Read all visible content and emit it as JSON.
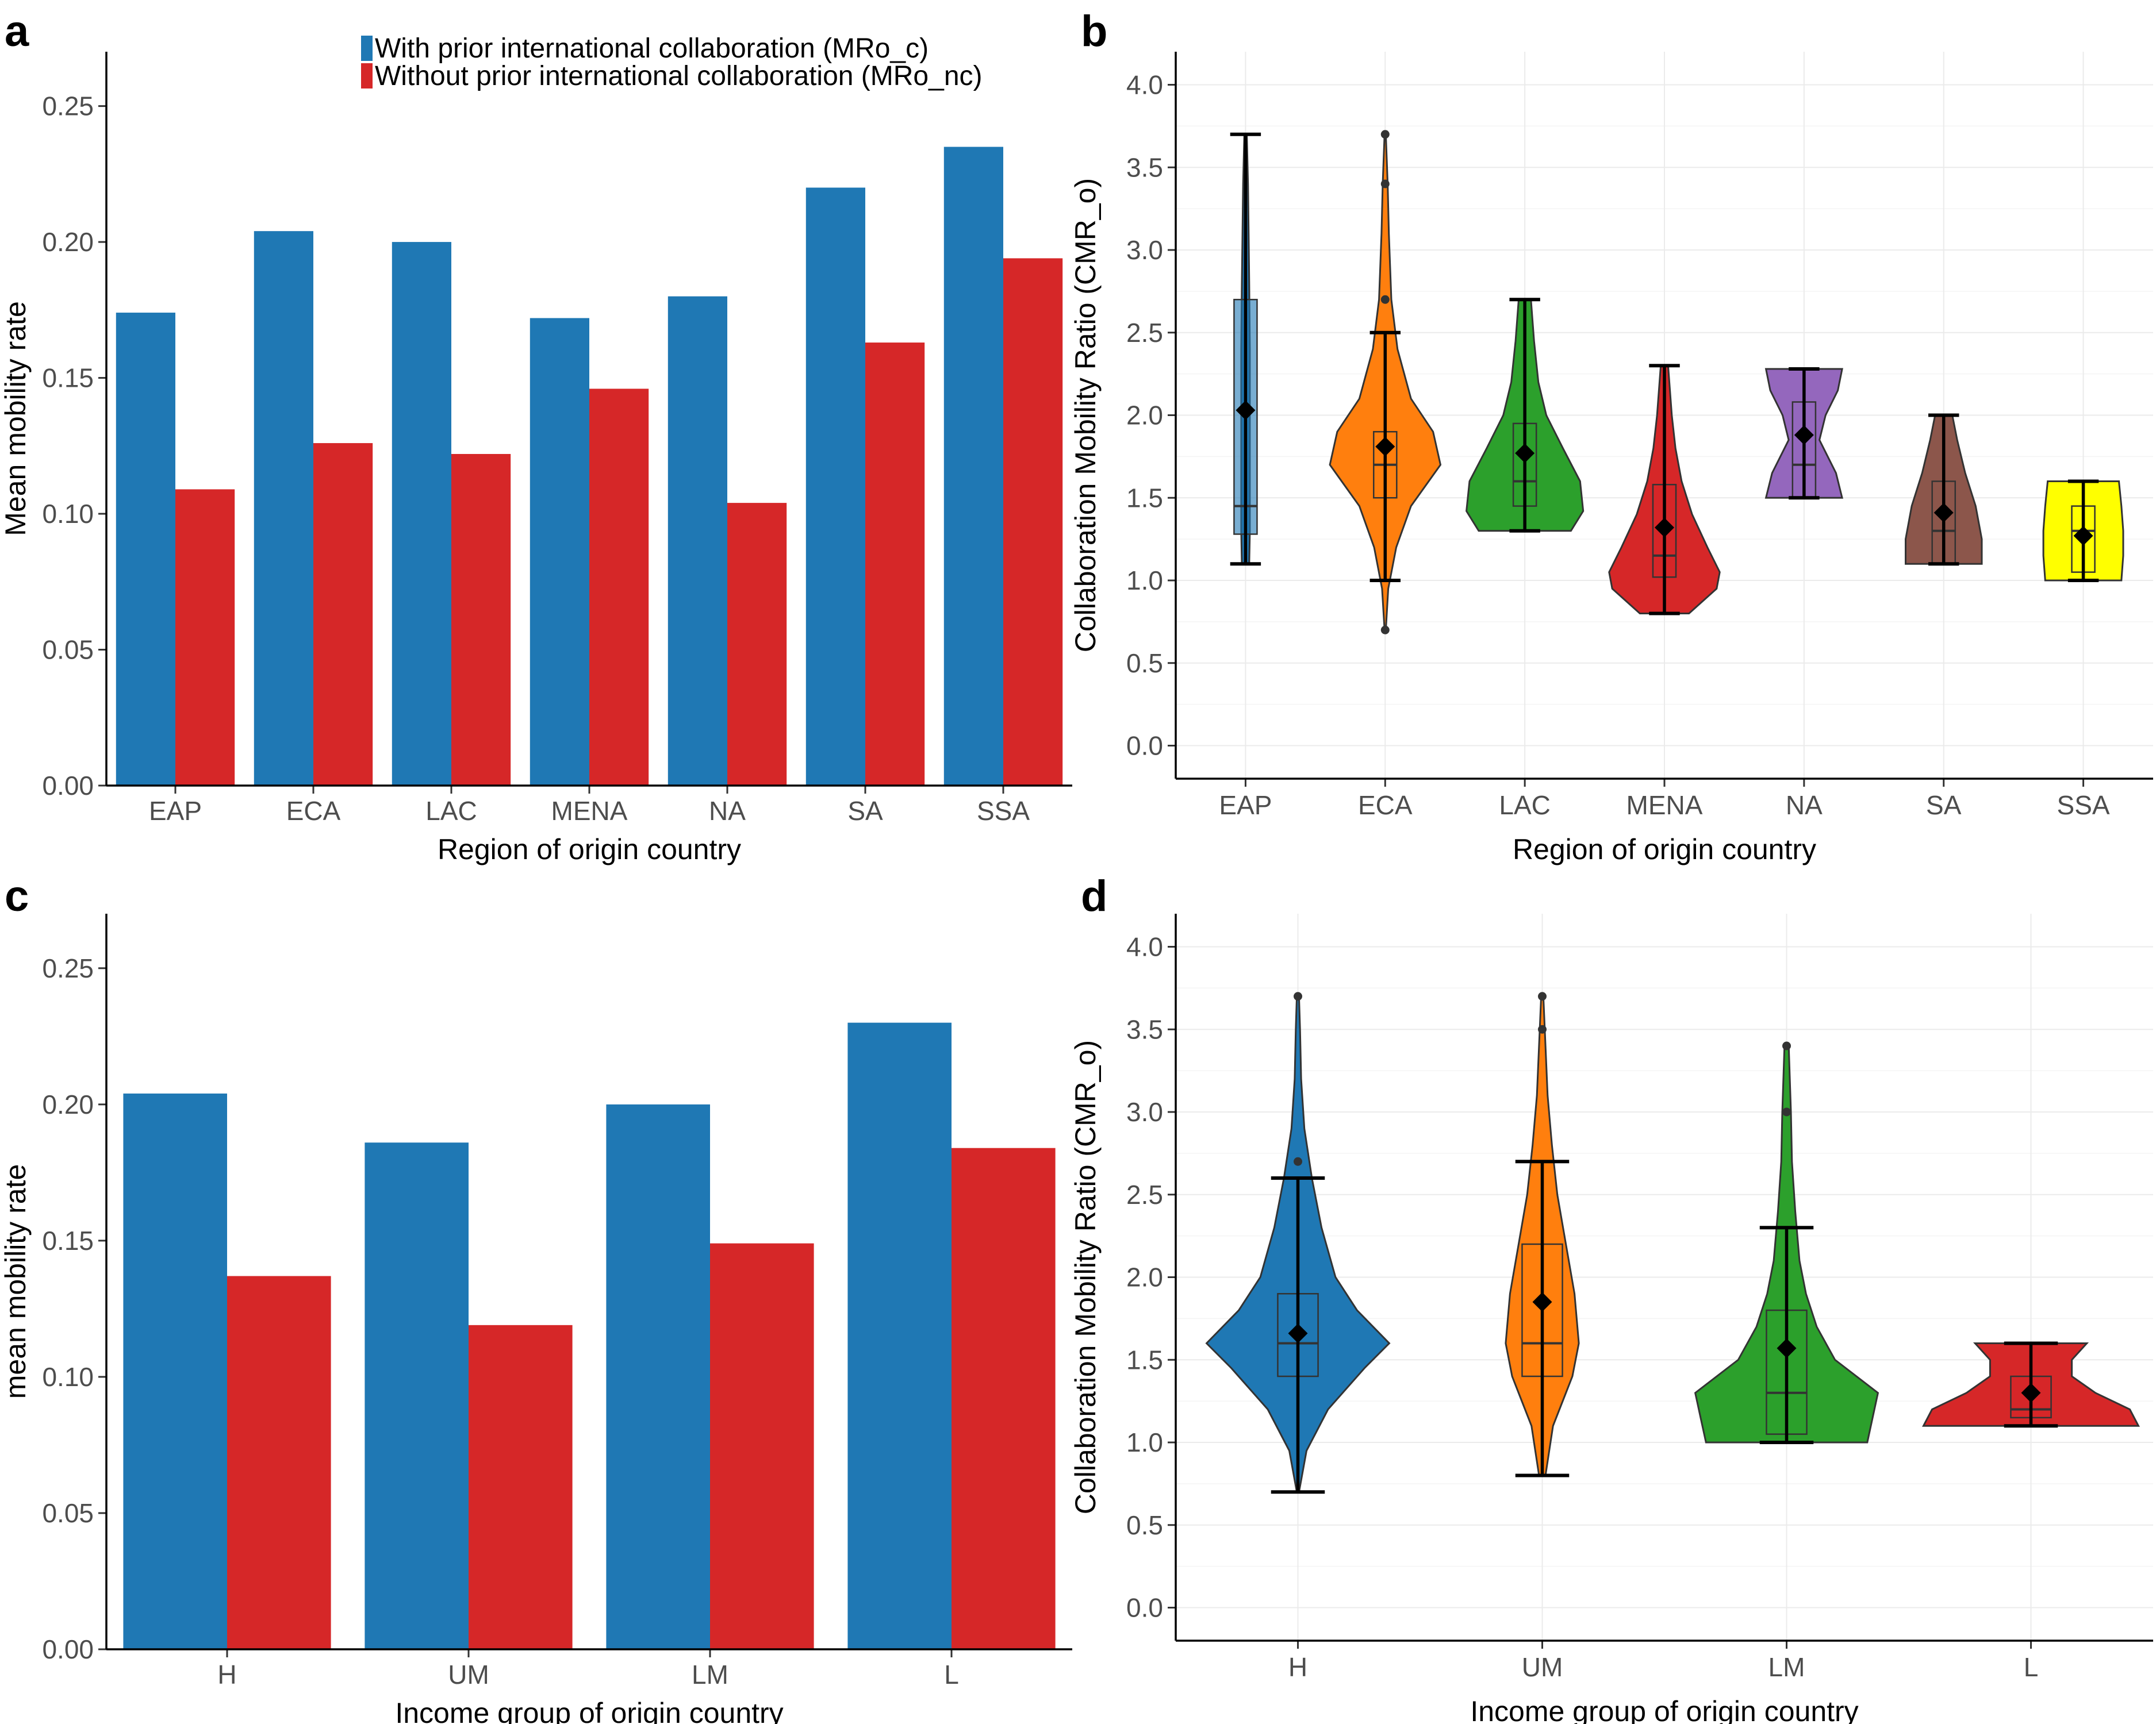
{
  "colors": {
    "with_collab": "#1f78b4",
    "without_collab": "#d62728",
    "axis": "#000000",
    "tick_text": "#4d4d4d",
    "grid": "#ebebeb",
    "violin_palette_regions": [
      "#1f78b4",
      "#ff7f0e",
      "#2ca02c",
      "#d62728",
      "#9467bd",
      "#8c564b",
      "#ffff00"
    ],
    "violin_palette_income": [
      "#1f78b4",
      "#ff7f0e",
      "#2ca02c",
      "#d62728"
    ]
  },
  "chart_data": [
    {
      "panel": "a",
      "type": "bar",
      "categories": [
        "EAP",
        "ECA",
        "LAC",
        "MENA",
        "NA",
        "SA",
        "SSA"
      ],
      "series": [
        {
          "name": "With prior international collaboration (MRo_c)",
          "values": [
            0.174,
            0.204,
            0.2,
            0.172,
            0.18,
            0.22,
            0.235
          ]
        },
        {
          "name": "Without prior international collaboration (MRo_nc)",
          "values": [
            0.109,
            0.126,
            0.122,
            0.146,
            0.104,
            0.163,
            0.194
          ]
        }
      ],
      "xlabel": "Region of origin country",
      "ylabel": "Mean mobility rate",
      "ylim": [
        0,
        0.27
      ],
      "yticks": [
        "0.00",
        "0.05",
        "0.10",
        "0.15",
        "0.20",
        "0.25"
      ],
      "legend": "top-center"
    },
    {
      "panel": "b",
      "type": "violin",
      "categories": [
        "EAP",
        "ECA",
        "LAC",
        "MENA",
        "NA",
        "SA",
        "SSA"
      ],
      "series": [
        {
          "category": "EAP",
          "min": 1.1,
          "q1": 1.28,
          "median": 1.45,
          "q3": 2.7,
          "max": 3.7,
          "mean": 2.03,
          "outliers": [],
          "shape": [
            [
              1.1,
              0.06
            ],
            [
              1.3,
              0.07
            ],
            [
              1.6,
              0.07
            ],
            [
              2.0,
              0.07
            ],
            [
              2.4,
              0.07
            ],
            [
              2.8,
              0.06
            ],
            [
              3.1,
              0.05
            ],
            [
              3.4,
              0.04
            ],
            [
              3.7,
              0.02
            ]
          ]
        },
        {
          "category": "ECA",
          "min": 1.0,
          "q1": 1.5,
          "median": 1.7,
          "q3": 1.9,
          "max": 2.5,
          "mean": 1.81,
          "outliers": [
            0.7,
            2.7,
            3.4,
            3.7
          ],
          "shape": [
            [
              0.7,
              0.01
            ],
            [
              0.95,
              0.05
            ],
            [
              1.2,
              0.18
            ],
            [
              1.45,
              0.42
            ],
            [
              1.7,
              0.9
            ],
            [
              1.9,
              0.78
            ],
            [
              2.1,
              0.42
            ],
            [
              2.4,
              0.2
            ],
            [
              2.7,
              0.1
            ],
            [
              3.1,
              0.06
            ],
            [
              3.4,
              0.04
            ],
            [
              3.7,
              0.01
            ]
          ]
        },
        {
          "category": "LAC",
          "min": 1.3,
          "q1": 1.45,
          "median": 1.6,
          "q3": 1.95,
          "max": 2.7,
          "mean": 1.77,
          "outliers": [],
          "shape": [
            [
              1.3,
              0.75
            ],
            [
              1.42,
              0.95
            ],
            [
              1.6,
              0.9
            ],
            [
              1.8,
              0.62
            ],
            [
              2.0,
              0.35
            ],
            [
              2.2,
              0.22
            ],
            [
              2.45,
              0.15
            ],
            [
              2.7,
              0.1
            ]
          ]
        },
        {
          "category": "MENA",
          "min": 0.8,
          "q1": 1.02,
          "median": 1.15,
          "q3": 1.58,
          "max": 2.3,
          "mean": 1.32,
          "outliers": [],
          "shape": [
            [
              0.8,
              0.4
            ],
            [
              0.95,
              0.85
            ],
            [
              1.05,
              0.9
            ],
            [
              1.2,
              0.7
            ],
            [
              1.4,
              0.45
            ],
            [
              1.6,
              0.28
            ],
            [
              1.8,
              0.18
            ],
            [
              2.0,
              0.12
            ],
            [
              2.3,
              0.06
            ]
          ]
        },
        {
          "category": "NA",
          "min": 1.5,
          "q1": 1.5,
          "median": 1.7,
          "q3": 2.08,
          "max": 2.28,
          "mean": 1.88,
          "outliers": [],
          "shape": [
            [
              1.5,
              0.62
            ],
            [
              1.65,
              0.52
            ],
            [
              1.85,
              0.25
            ],
            [
              2.0,
              0.35
            ],
            [
              2.15,
              0.55
            ],
            [
              2.28,
              0.62
            ]
          ]
        },
        {
          "category": "SA",
          "min": 1.1,
          "q1": 1.1,
          "median": 1.3,
          "q3": 1.6,
          "max": 2.0,
          "mean": 1.41,
          "outliers": [],
          "shape": [
            [
              1.1,
              0.62
            ],
            [
              1.25,
              0.62
            ],
            [
              1.45,
              0.52
            ],
            [
              1.65,
              0.35
            ],
            [
              1.85,
              0.22
            ],
            [
              2.0,
              0.14
            ]
          ]
        },
        {
          "category": "SSA",
          "min": 1.0,
          "q1": 1.05,
          "median": 1.3,
          "q3": 1.45,
          "max": 1.6,
          "mean": 1.27,
          "outliers": [],
          "shape": [
            [
              1.0,
              0.62
            ],
            [
              1.15,
              0.65
            ],
            [
              1.3,
              0.65
            ],
            [
              1.45,
              0.62
            ],
            [
              1.6,
              0.58
            ]
          ]
        }
      ],
      "xlabel": "Region of origin country",
      "ylabel": "Collaboration Mobility Ratio (CMR_o)",
      "ylim": [
        -0.2,
        4.2
      ],
      "yticks": [
        "0.0",
        "0.5",
        "1.0",
        "1.5",
        "2.0",
        "2.5",
        "3.0",
        "3.5",
        "4.0"
      ]
    },
    {
      "panel": "c",
      "type": "bar",
      "categories": [
        "H",
        "UM",
        "LM",
        "L"
      ],
      "series": [
        {
          "name": "With prior international collaboration (MRo_c)",
          "values": [
            0.204,
            0.186,
            0.2,
            0.23
          ]
        },
        {
          "name": "Without prior international collaboration (MRo_nc)",
          "values": [
            0.137,
            0.119,
            0.149,
            0.184
          ]
        }
      ],
      "xlabel": "Income group of origin country",
      "ylabel": "mean mobility rate",
      "ylim": [
        0,
        0.27
      ],
      "yticks": [
        "0.00",
        "0.05",
        "0.10",
        "0.15",
        "0.20",
        "0.25"
      ]
    },
    {
      "panel": "d",
      "type": "violin",
      "categories": [
        "H",
        "UM",
        "LM",
        "L"
      ],
      "series": [
        {
          "category": "H",
          "min": 0.7,
          "q1": 1.4,
          "median": 1.6,
          "q3": 1.9,
          "max": 2.6,
          "mean": 1.66,
          "outliers": [
            2.7,
            3.7
          ],
          "shape": [
            [
              0.7,
              0.01
            ],
            [
              0.95,
              0.08
            ],
            [
              1.2,
              0.28
            ],
            [
              1.45,
              0.62
            ],
            [
              1.6,
              0.85
            ],
            [
              1.8,
              0.55
            ],
            [
              2.0,
              0.35
            ],
            [
              2.3,
              0.22
            ],
            [
              2.6,
              0.13
            ],
            [
              2.9,
              0.06
            ],
            [
              3.2,
              0.03
            ],
            [
              3.5,
              0.02
            ],
            [
              3.7,
              0.01
            ]
          ]
        },
        {
          "category": "UM",
          "min": 0.8,
          "q1": 1.4,
          "median": 1.6,
          "q3": 2.2,
          "max": 2.7,
          "mean": 1.85,
          "outliers": [
            3.5,
            3.7
          ],
          "shape": [
            [
              0.8,
              0.03
            ],
            [
              1.1,
              0.1
            ],
            [
              1.4,
              0.28
            ],
            [
              1.6,
              0.34
            ],
            [
              1.9,
              0.3
            ],
            [
              2.2,
              0.22
            ],
            [
              2.5,
              0.14
            ],
            [
              2.8,
              0.09
            ],
            [
              3.1,
              0.05
            ],
            [
              3.4,
              0.03
            ],
            [
              3.7,
              0.01
            ]
          ]
        },
        {
          "category": "LM",
          "min": 1.0,
          "q1": 1.05,
          "median": 1.3,
          "q3": 1.8,
          "max": 2.3,
          "mean": 1.57,
          "outliers": [
            3.0,
            3.4
          ],
          "shape": [
            [
              1.0,
              0.75
            ],
            [
              1.15,
              0.8
            ],
            [
              1.3,
              0.85
            ],
            [
              1.5,
              0.45
            ],
            [
              1.7,
              0.28
            ],
            [
              1.9,
              0.18
            ],
            [
              2.1,
              0.12
            ],
            [
              2.4,
              0.08
            ],
            [
              2.7,
              0.05
            ],
            [
              3.0,
              0.04
            ],
            [
              3.4,
              0.02
            ]
          ]
        },
        {
          "category": "L",
          "min": 1.1,
          "q1": 1.15,
          "median": 1.2,
          "q3": 1.4,
          "max": 1.6,
          "mean": 1.3,
          "outliers": [],
          "shape": [
            [
              1.1,
              1.0
            ],
            [
              1.2,
              0.92
            ],
            [
              1.3,
              0.6
            ],
            [
              1.4,
              0.38
            ],
            [
              1.5,
              0.38
            ],
            [
              1.6,
              0.52
            ]
          ]
        }
      ],
      "xlabel": "Income group of origin country",
      "ylabel": "Collaboration Mobility Ratio (CMR_o)",
      "ylim": [
        -0.2,
        4.2
      ],
      "yticks": [
        "0.0",
        "0.5",
        "1.0",
        "1.5",
        "2.0",
        "2.5",
        "3.0",
        "3.5",
        "4.0"
      ]
    }
  ]
}
